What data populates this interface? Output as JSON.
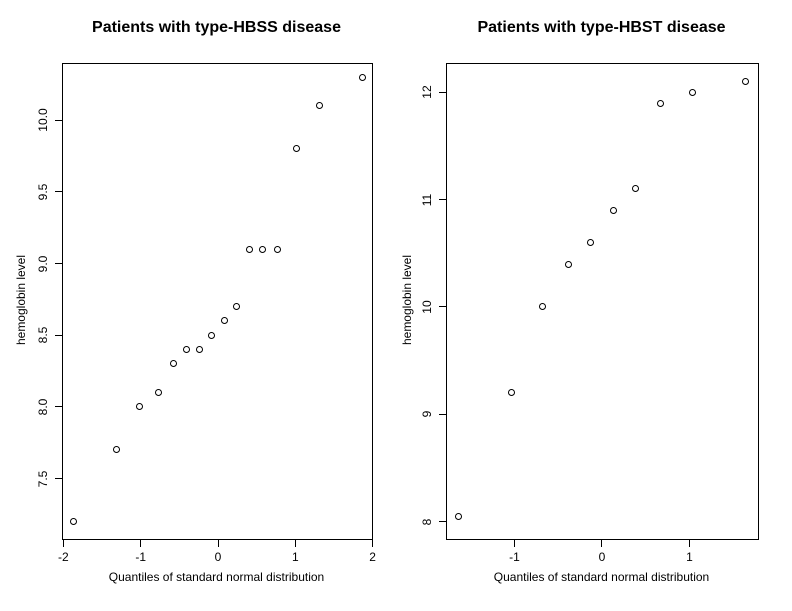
{
  "colors": {
    "background": "#ffffff",
    "axis": "#000000",
    "point_outline": "#000000",
    "text": "#000000"
  },
  "chart_data": [
    {
      "type": "scatter",
      "title": "Patients with type-HBSS disease",
      "xlabel": "Quantiles of standard normal distribution",
      "ylabel": "hemoglobin level",
      "marker": "open-circle",
      "n": 16,
      "xlim": [
        -2.005,
        1.992
      ],
      "ylim": [
        7.078,
        10.392
      ],
      "grid": false,
      "x_ticks": {
        "values": [
          -2,
          -1,
          0,
          1,
          2
        ],
        "labels": [
          "-2",
          "-1",
          "0",
          "1",
          "2"
        ]
      },
      "y_ticks": {
        "values": [
          7.5,
          8.0,
          8.5,
          9.0,
          9.5,
          10.0
        ],
        "labels": [
          "7.5",
          "8.0",
          "8.5",
          "9.0",
          "9.5",
          "10.0"
        ]
      },
      "points": {
        "x": [
          -1.863,
          -1.318,
          -1.01,
          -0.776,
          -0.579,
          -0.402,
          -0.237,
          -0.078,
          0.078,
          0.237,
          0.402,
          0.579,
          0.776,
          1.01,
          1.318,
          1.863
        ],
        "y": [
          7.2,
          7.7,
          8.0,
          8.1,
          8.3,
          8.4,
          8.4,
          8.5,
          8.6,
          8.7,
          9.1,
          9.1,
          9.1,
          9.8,
          10.1,
          10.3
        ]
      }
    },
    {
      "type": "scatter",
      "title": "Patients with type-HBST disease",
      "xlabel": "Quantiles of standard normal distribution",
      "ylabel": "hemoglobin level",
      "marker": "open-circle",
      "n": 10,
      "xlim": [
        -1.771,
        1.783
      ],
      "ylim": [
        7.837,
        12.264
      ],
      "grid": false,
      "x_ticks": {
        "values": [
          -1,
          0,
          1
        ],
        "labels": [
          "-1",
          "0",
          "1"
        ]
      },
      "y_ticks": {
        "values": [
          8,
          9,
          10,
          11,
          12
        ],
        "labels": [
          "8",
          "9",
          "10",
          "11",
          "12"
        ]
      },
      "points": {
        "x": [
          -1.645,
          -1.036,
          -0.674,
          -0.385,
          -0.126,
          0.126,
          0.385,
          0.674,
          1.036,
          1.645
        ],
        "y": [
          8.05,
          9.2,
          10.0,
          10.4,
          10.6,
          10.9,
          11.1,
          11.9,
          12.0,
          12.1
        ]
      }
    }
  ]
}
